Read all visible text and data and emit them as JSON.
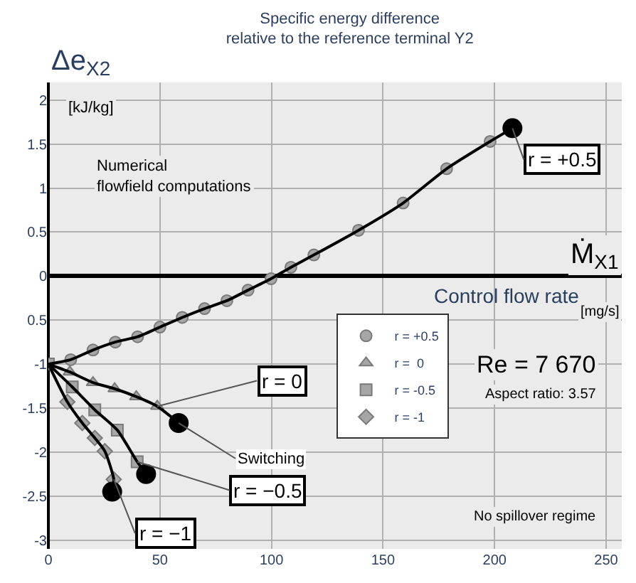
{
  "chart_data": {
    "type": "scatter",
    "title": "Specific energy difference\nrelative to the reference terminal Y2",
    "ylabel": "Δe$_{X2}$",
    "xlabel": "Control flow rate",
    "xlim": [
      0,
      257
    ],
    "xticks": [
      0,
      50,
      100,
      150,
      200,
      250
    ],
    "ylim": [
      -3.1,
      2.2
    ],
    "yticks": [
      -3,
      -2.5,
      -2,
      -1.5,
      -1,
      {
        "value": -0.5,
        "label": "0.5"
      },
      0,
      0.5,
      1,
      1.5,
      2
    ],
    "grid": true,
    "legend": "center",
    "series": [
      {
        "name": "r = +0.5",
        "marker": "circle",
        "color": "#a6a6a6",
        "x": [
          10,
          20,
          30,
          40,
          50,
          60,
          70,
          80,
          89.5,
          99.8,
          108.7,
          119,
          139,
          159,
          178.5,
          198
        ],
        "values": [
          -0.95,
          -0.84,
          -0.75,
          -0.69,
          -0.58,
          -0.47,
          -0.37,
          -0.28,
          -0.16,
          -0.03,
          0.1,
          0.24,
          0.52,
          0.83,
          1.22,
          1.53
        ]
      },
      {
        "name": "r =  0",
        "marker": "triangle",
        "color": "#a6a6a6",
        "x": [
          9.6,
          20,
          29.7,
          39.4,
          48.8
        ],
        "values": [
          -1.09,
          -1.21,
          -1.28,
          -1.37,
          -1.48
        ]
      },
      {
        "name": "r = -0.5",
        "marker": "square",
        "color": "#a6a6a6",
        "x": [
          0,
          10.7,
          20.8,
          30.9,
          39.8
        ],
        "values": [
          -1,
          -1.26,
          -1.52,
          -1.75,
          -2.11
        ]
      },
      {
        "name": "r = -1",
        "marker": "diamond",
        "color": "#a6a6a6",
        "x": [
          8.5,
          15.2,
          20.8,
          25.3,
          29.3
        ],
        "values": [
          -1.43,
          -1.67,
          -1.84,
          -1.99,
          -2.31
        ]
      },
      {
        "type": "line",
        "marker": "none",
        "color": "#000000",
        "x": [
          0,
          10,
          20,
          30,
          40,
          50,
          60,
          70,
          80,
          89.5,
          99.8,
          108.7,
          119,
          139,
          159,
          178.5,
          198,
          208
        ],
        "values": [
          -1,
          -0.95,
          -0.84,
          -0.75,
          -0.69,
          -0.58,
          -0.47,
          -0.37,
          -0.28,
          -0.16,
          -0.03,
          0.1,
          0.24,
          0.52,
          0.83,
          1.22,
          1.53,
          1.68
        ]
      },
      {
        "type": "line",
        "marker": "none",
        "color": "#000000",
        "x": [
          0,
          9.6,
          20,
          29.7,
          39.4,
          48.8,
          58.4
        ],
        "values": [
          -1,
          -1.09,
          -1.21,
          -1.28,
          -1.37,
          -1.48,
          -1.67
        ]
      },
      {
        "type": "line",
        "marker": "none",
        "color": "#000000",
        "x": [
          0,
          10.7,
          20.8,
          30.9,
          39.8,
          43.8
        ],
        "values": [
          -1,
          -1.26,
          -1.52,
          -1.75,
          -2.11,
          -2.25
        ]
      },
      {
        "type": "line",
        "marker": "none",
        "color": "#000000",
        "x": [
          0,
          8.5,
          15.2,
          20.8,
          25.3,
          29.3,
          28.6
        ],
        "values": [
          -1,
          -1.43,
          -1.67,
          -1.84,
          -1.99,
          -2.31,
          -2.45
        ]
      },
      {
        "marker": "circle",
        "color": "#000000",
        "x": [
          208,
          58.4,
          43.8,
          28.6
        ],
        "values": [
          1.68,
          -1.67,
          -2.25,
          -2.45
        ]
      }
    ],
    "annotations": [
      "[kJ/kg]",
      "Ṁ$_{X1}$",
      "[mg/s]",
      "Numerical\nflowfield computations",
      "Re = 7 670",
      "Aspect ratio: 3.57",
      "No spillover regime",
      {
        "text": "Switching",
        "x": 58.4,
        "y": -1.67
      },
      {
        "text": "r = +0.5",
        "x": 208,
        "y": 1.68
      },
      {
        "text": "r = 0",
        "x": 48.8,
        "y": -1.48
      },
      {
        "text": "r = −0.5",
        "x": 39.8,
        "y": -2.11
      },
      {
        "text": "r = −1",
        "x": 29.3,
        "y": -2.31
      }
    ]
  }
}
